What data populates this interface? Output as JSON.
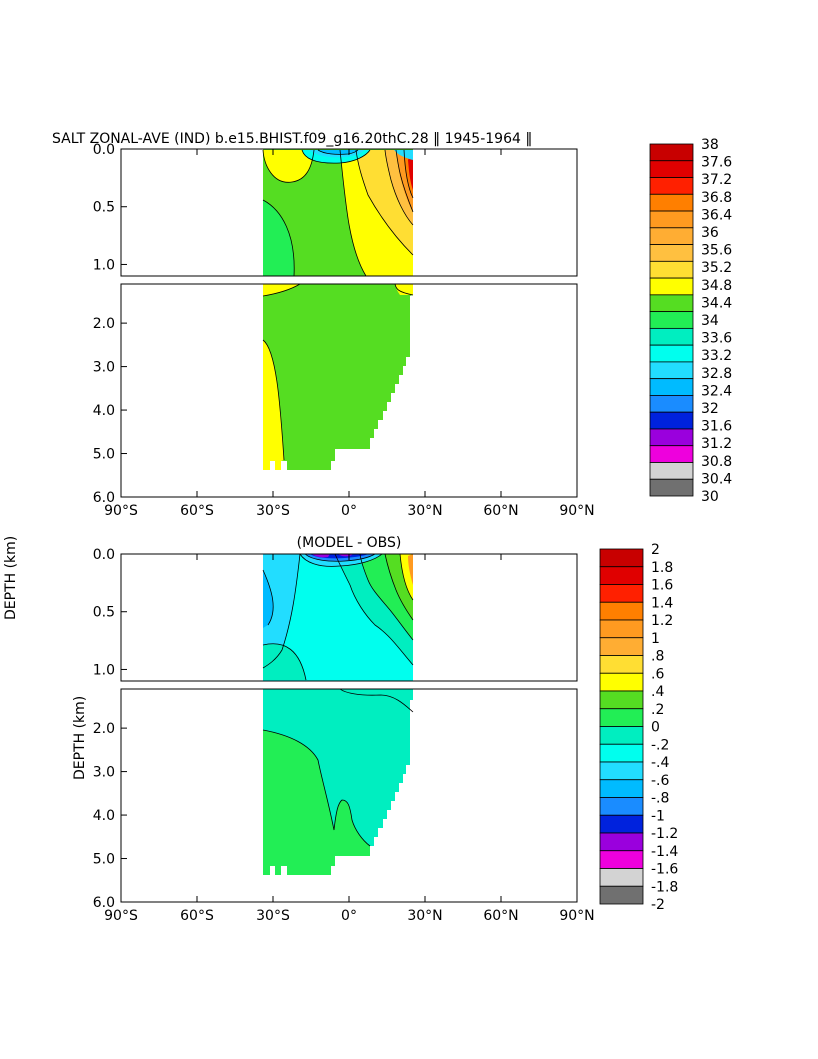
{
  "chart_data": [
    {
      "type": "heatmap",
      "title": "SALT ZONAL-AVE (IND) b.e15.BHIST.f09_g16.20thC.28 ‖ 1945-1964 ‖",
      "ylabel": "DEPTH (km)",
      "xlabel": "",
      "x_ticks": [
        "90°S",
        "60°S",
        "30°S",
        "0°",
        "30°N",
        "60°N",
        "90°N"
      ],
      "x_range": [
        -90,
        90
      ],
      "y_upper_range_km": [
        0,
        1.1
      ],
      "y_lower_range_km": [
        1.1,
        6.0
      ],
      "y_ticks_upper": [
        "0.0",
        "0.5",
        "1.0"
      ],
      "y_ticks_lower": [
        "2.0",
        "3.0",
        "4.0",
        "5.0",
        "6.0"
      ],
      "colorbar_labels": [
        "38",
        "37.6",
        "37.2",
        "36.8",
        "36.4",
        "36",
        "35.6",
        "35.2",
        "34.8",
        "34.4",
        "34",
        "33.6",
        "33.2",
        "32.8",
        "32.4",
        "32",
        "31.6",
        "31.2",
        "30.8",
        "30.4",
        "30"
      ],
      "colorbar_colors": [
        "#c80000",
        "#e00000",
        "#ff2000",
        "#ff7f00",
        "#ff9a20",
        "#ffad33",
        "#ffc040",
        "#ffde33",
        "#ffff00",
        "#55dd22",
        "#22ee55",
        "#00eec0",
        "#00ffee",
        "#22ddff",
        "#00bbff",
        "#1a8cff",
        "#0022dd",
        "#9a00dd",
        "#ee00dd",
        "#d3d3d3",
        "#707070"
      ],
      "regions": [
        {
          "value_range": [
            34.4,
            34.8
          ],
          "description": "background"
        },
        {
          "value_range": [
            34.8,
            35.2
          ],
          "location": "northern upper ocean and southern deep"
        },
        {
          "value_range": [
            35.2,
            37.6
          ],
          "location": "near 20-25N surface"
        },
        {
          "value_range": [
            32.8,
            34.0
          ],
          "location": "near-surface 10S-5N"
        }
      ]
    },
    {
      "type": "heatmap",
      "title": "(MODEL - OBS)",
      "ylabel": "DEPTH (km)",
      "xlabel": "",
      "x_ticks": [
        "90°S",
        "60°S",
        "30°S",
        "0°",
        "30°N",
        "60°N",
        "90°N"
      ],
      "x_range": [
        -90,
        90
      ],
      "y_upper_range_km": [
        0,
        1.1
      ],
      "y_lower_range_km": [
        1.1,
        6.0
      ],
      "y_ticks_upper": [
        "0.0",
        "0.5",
        "1.0"
      ],
      "y_ticks_lower": [
        "2.0",
        "3.0",
        "4.0",
        "5.0",
        "6.0"
      ],
      "colorbar_labels": [
        "2",
        "1.8",
        "1.6",
        "1.4",
        "1.2",
        "1",
        ".8",
        ".6",
        ".4",
        ".2",
        "0",
        "-.2",
        "-.4",
        "-.6",
        "-.8",
        "-1",
        "-1.2",
        "-1.4",
        "-1.6",
        "-1.8",
        "-2"
      ],
      "colorbar_colors": [
        "#c80000",
        "#e00000",
        "#ff2000",
        "#ff7f00",
        "#ff9a20",
        "#ffad33",
        "#ffde33",
        "#ffff00",
        "#55dd22",
        "#22ee55",
        "#00eec0",
        "#00ffee",
        "#22ddff",
        "#00bbff",
        "#1a8cff",
        "#0022dd",
        "#9a00dd",
        "#ee00dd",
        "#d3d3d3",
        "#707070"
      ],
      "regions": [
        {
          "value_range": [
            -0.2,
            0
          ],
          "description": "background"
        },
        {
          "value_range": [
            0,
            0.2
          ],
          "location": "southern deep 2-5 km"
        },
        {
          "value_range": [
            -0.4,
            -0.2
          ],
          "location": "southern upper 0-0.8 km"
        },
        {
          "value_range": [
            0.2,
            0.6
          ],
          "location": "near 20-25N upper"
        },
        {
          "value_range": [
            -1.2,
            -0.6
          ],
          "location": "near-surface 15S-5N"
        }
      ]
    }
  ]
}
